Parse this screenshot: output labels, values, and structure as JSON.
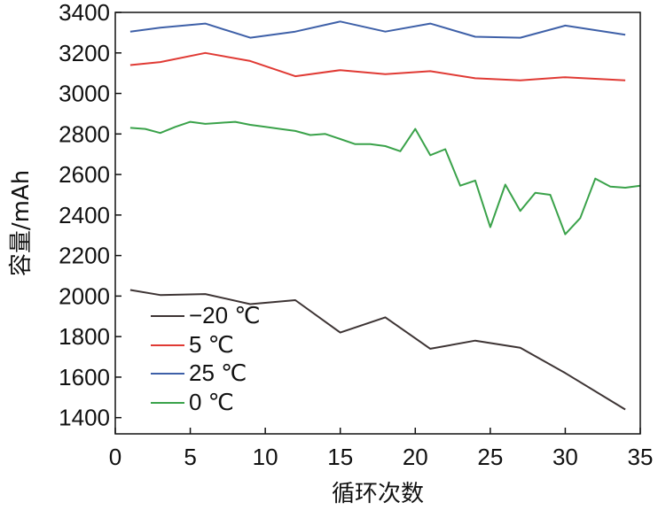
{
  "chart_data": {
    "type": "line",
    "xlabel": "循环次数",
    "ylabel": "容量/mAh",
    "xlim": [
      0,
      35
    ],
    "ylim": [
      1320,
      3400
    ],
    "xticks": [
      0,
      5,
      10,
      15,
      20,
      25,
      30,
      35
    ],
    "yticks": [
      1400,
      1600,
      1800,
      2000,
      2200,
      2400,
      2600,
      2800,
      3000,
      3200,
      3400
    ],
    "grid": false,
    "legend_position": "bottom-left",
    "series": [
      {
        "name": "−20 ℃",
        "color": "#3d3434",
        "x": [
          1,
          3,
          6,
          9,
          12,
          15,
          18,
          21,
          24,
          27,
          30,
          34
        ],
        "y": [
          2030,
          2005,
          2010,
          1960,
          1980,
          1820,
          1895,
          1740,
          1780,
          1745,
          1620,
          1440
        ]
      },
      {
        "name": "5 ℃",
        "color": "#e03a34",
        "x": [
          1,
          3,
          6,
          9,
          12,
          15,
          18,
          21,
          24,
          27,
          30,
          34
        ],
        "y": [
          3140,
          3155,
          3200,
          3160,
          3085,
          3115,
          3095,
          3110,
          3075,
          3065,
          3080,
          3065
        ]
      },
      {
        "name": "25 ℃",
        "color": "#3e60a8",
        "x": [
          1,
          3,
          6,
          9,
          12,
          15,
          18,
          21,
          24,
          27,
          30,
          34
        ],
        "y": [
          3305,
          3325,
          3345,
          3275,
          3305,
          3355,
          3305,
          3345,
          3280,
          3275,
          3335,
          3290
        ]
      },
      {
        "name": "0 ℃",
        "color": "#3aa24a",
        "x": [
          1,
          2,
          3,
          4,
          5,
          6,
          7,
          8,
          9,
          10,
          11,
          12,
          13,
          14,
          15,
          16,
          17,
          18,
          19,
          20,
          21,
          22,
          23,
          24,
          25,
          26,
          27,
          28,
          29,
          30,
          31,
          32,
          33,
          34,
          35
        ],
        "y": [
          2830,
          2825,
          2805,
          2835,
          2860,
          2850,
          2855,
          2860,
          2845,
          2835,
          2825,
          2815,
          2795,
          2800,
          2775,
          2750,
          2750,
          2740,
          2715,
          2825,
          2695,
          2725,
          2545,
          2570,
          2340,
          2550,
          2420,
          2510,
          2500,
          2305,
          2385,
          2580,
          2540,
          2535,
          2545
        ]
      }
    ]
  }
}
